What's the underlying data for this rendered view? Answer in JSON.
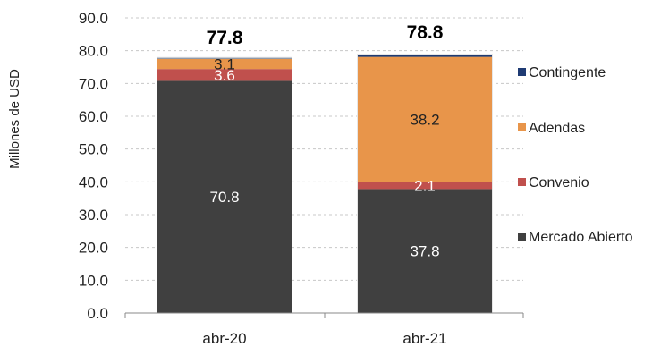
{
  "chart_data": {
    "type": "bar",
    "stacked": true,
    "ylabel": "Millones de USD",
    "ylim": [
      0,
      90
    ],
    "yticks": [
      "0.0",
      "10.0",
      "20.0",
      "30.0",
      "40.0",
      "50.0",
      "60.0",
      "70.0",
      "80.0",
      "90.0"
    ],
    "grid": true,
    "legend_position": "right",
    "categories": [
      "abr-20",
      "abr-21"
    ],
    "totals": [
      "77.8",
      "78.8"
    ],
    "series": [
      {
        "name": "Mercado Abierto",
        "color": "#404040",
        "values": [
          70.8,
          37.8
        ],
        "labels": [
          "70.8",
          "37.8"
        ],
        "label_color": "#ffffff"
      },
      {
        "name": "Convenio",
        "color": "#c0504d",
        "values": [
          3.6,
          2.1
        ],
        "labels": [
          "3.6",
          "2.1"
        ],
        "label_color": "#ffffff"
      },
      {
        "name": "Adendas",
        "color": "#e8954a",
        "values": [
          3.1,
          38.2
        ],
        "labels": [
          "3.1",
          "38.2"
        ],
        "label_color": "#222222"
      },
      {
        "name": "Contingente",
        "color": "#7f8fa6",
        "values": [
          0.3,
          0.7
        ],
        "labels": [
          "",
          ""
        ],
        "label_color": "#ffffff",
        "colors": [
          "#7f8fa6",
          "#1f3b73"
        ]
      }
    ],
    "legend_order": [
      "Contingente",
      "Adendas",
      "Convenio",
      "Mercado Abierto"
    ]
  }
}
